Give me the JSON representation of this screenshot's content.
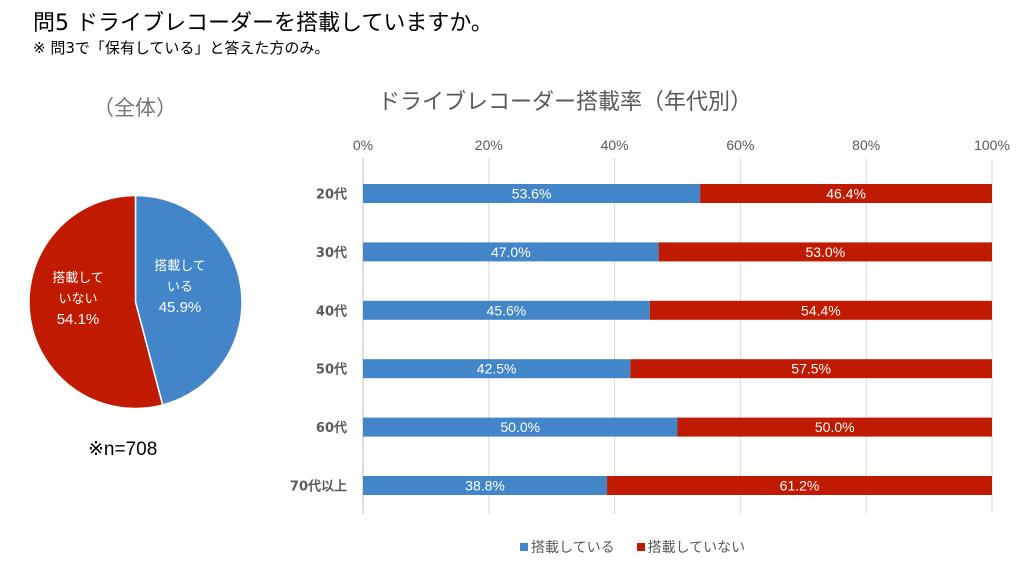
{
  "header": {
    "question": "問5  ドライブレコーダーを搭載していますか。",
    "note": "※  問3で「保有している」と答えた方のみ。"
  },
  "colors": {
    "equipped": "#4285c8",
    "not_equipped": "#c01a00",
    "grid": "#d9d9d9"
  },
  "chart_data": [
    {
      "type": "pie",
      "title": "（全体）",
      "slices": [
        {
          "label": "搭載している",
          "label_lines": [
            "搭載して",
            "いる",
            "45.9%"
          ],
          "value": 45.9,
          "color": "#4285c8"
        },
        {
          "label": "搭載していない",
          "label_lines": [
            "搭載して",
            "いない",
            "54.1%"
          ],
          "value": 54.1,
          "color": "#c01a00"
        }
      ],
      "footnote": "※n=708"
    },
    {
      "type": "bar",
      "orientation": "horizontal",
      "stacked": "percent",
      "title": "ドライブレコーダー搭載率（年代別）",
      "categories": [
        "20代",
        "30代",
        "40代",
        "50代",
        "60代",
        "70代以上"
      ],
      "series": [
        {
          "name": "搭載している",
          "color": "#4285c8",
          "values": [
            53.6,
            47.0,
            45.6,
            42.5,
            50.0,
            38.8
          ],
          "labels": [
            "53.6%",
            "47.0%",
            "45.6%",
            "42.5%",
            "50.0%",
            "38.8%"
          ]
        },
        {
          "name": "搭載していない",
          "color": "#c01a00",
          "values": [
            46.4,
            53.0,
            54.4,
            57.5,
            50.0,
            61.2
          ],
          "labels": [
            "46.4%",
            "53.0%",
            "54.4%",
            "57.5%",
            "50.0%",
            "61.2%"
          ]
        }
      ],
      "xlim": [
        0,
        100
      ],
      "xticks": [
        0,
        20,
        40,
        60,
        80,
        100
      ],
      "xtick_labels": [
        "0%",
        "20%",
        "40%",
        "60%",
        "80%",
        "100%"
      ],
      "xaxis_position": "top",
      "grid": true,
      "legend": "bottom"
    }
  ]
}
